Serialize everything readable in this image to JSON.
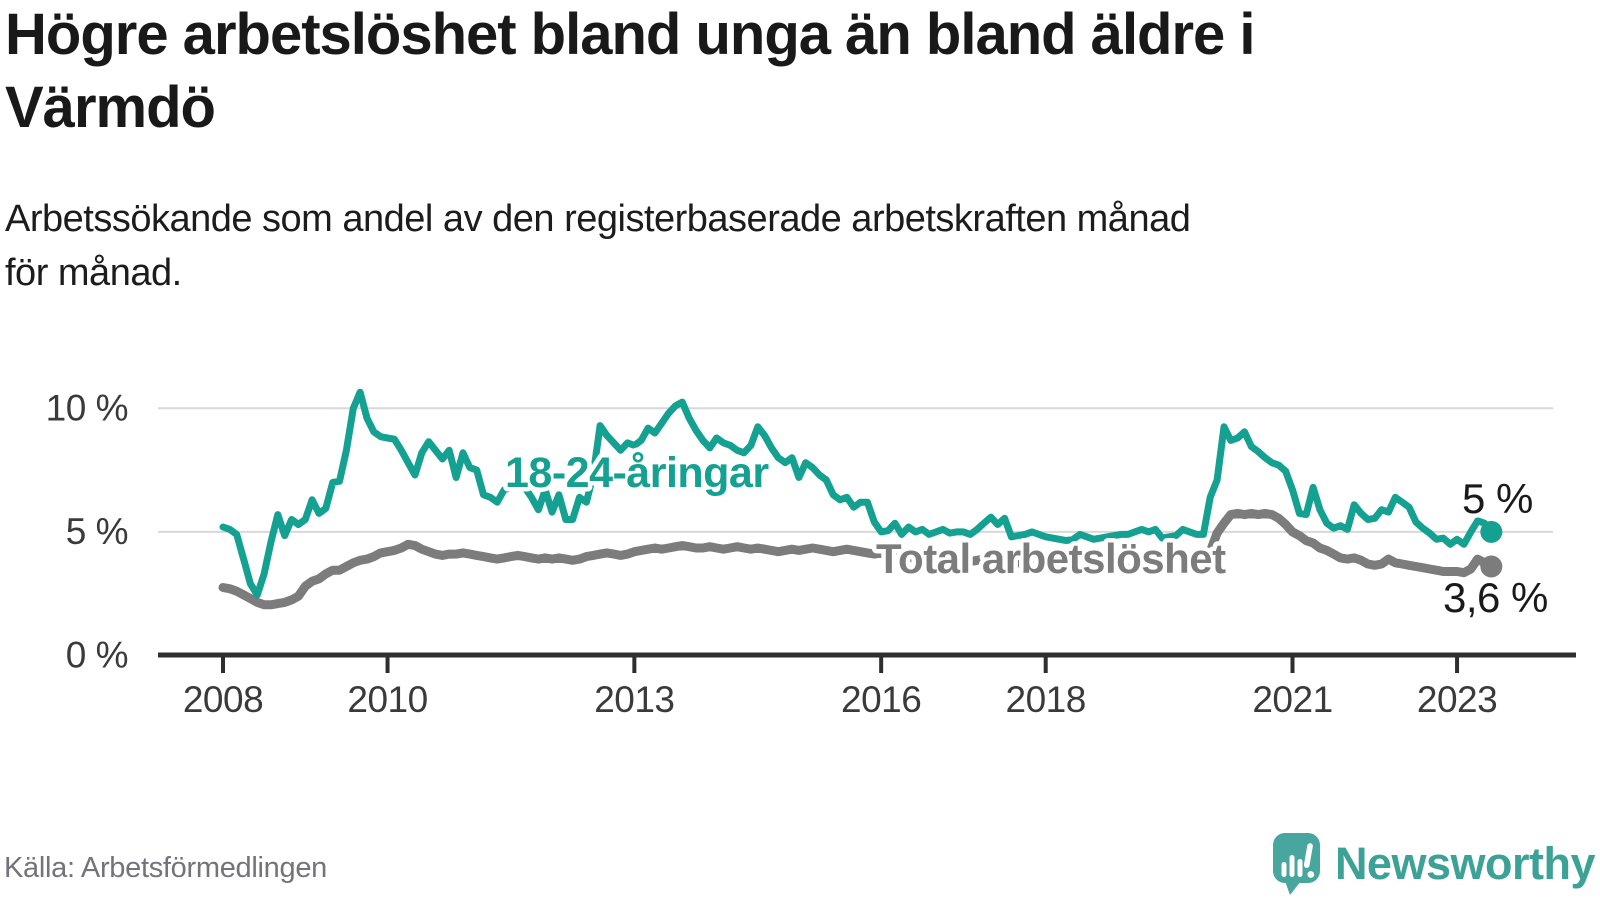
{
  "header": {
    "title_lines": [
      "Högre arbetslöshet bland unga än bland äldre i",
      "Värmdö"
    ],
    "subtitle_lines": [
      "Arbetssökande som andel av den registerbaserade arbetskraften månad",
      "för månad."
    ]
  },
  "footer": {
    "source": "Källa: Arbetsförmedlingen",
    "brand": "Newsworthy",
    "logo_icon": "newsworthy-speech-bubble-bar-chart-icon"
  },
  "colors": {
    "youth_line": "#15a191",
    "total_line": "#7c7c7c",
    "axis_line": "#2e2e2e",
    "gridline": "#d8d8d8",
    "tick_label": "#3a3a3a",
    "end_label": "#1a1a1a",
    "title": "#191919",
    "source_text": "#73737b",
    "brand_teal": "#3ca197",
    "icon_teal": "#47a69e"
  },
  "chart_data": {
    "type": "line",
    "title": "Högre arbetslöshet bland unga än bland äldre i Värmdö",
    "subtitle": "Arbetssökande som andel av den registerbaserade arbetskraften månad för månad.",
    "x_axis": {
      "ticks": [
        2008,
        2010,
        2013,
        2016,
        2018,
        2021,
        2023
      ],
      "labels": [
        "2008",
        "2010",
        "2013",
        "2016",
        "2018",
        "2021",
        "2023"
      ]
    },
    "y_axis": {
      "ticks": [
        0,
        5,
        10
      ],
      "labels": [
        "0 %",
        "5 %",
        "10 %"
      ],
      "range": [
        0,
        11.5
      ],
      "unit": "%"
    },
    "start": "2008-01",
    "frequency": "monthly",
    "grid": "horizontal-only",
    "legend_position": "inline-labels",
    "series": [
      {
        "name": "18-24-åringar",
        "color": "#15a191",
        "end_label": "5 %",
        "end_value": 5.0,
        "values": [
          5.2,
          5.1,
          4.9,
          3.9,
          2.9,
          2.45,
          3.3,
          4.6,
          5.7,
          4.85,
          5.5,
          5.3,
          5.5,
          6.3,
          5.75,
          5.95,
          7.0,
          7.05,
          8.3,
          10.0,
          10.65,
          9.6,
          9.05,
          8.85,
          8.8,
          8.75,
          8.3,
          7.8,
          7.3,
          8.2,
          8.65,
          8.3,
          7.95,
          8.3,
          7.2,
          8.2,
          7.6,
          7.5,
          6.5,
          6.4,
          6.2,
          6.7,
          6.8,
          7.2,
          6.8,
          6.4,
          5.9,
          6.7,
          5.8,
          6.5,
          5.5,
          5.5,
          6.4,
          6.2,
          7.3,
          9.3,
          8.9,
          8.6,
          8.3,
          8.6,
          8.5,
          8.7,
          9.2,
          9.0,
          9.4,
          9.8,
          10.1,
          10.25,
          9.6,
          9.1,
          8.7,
          8.4,
          8.8,
          8.6,
          8.5,
          8.3,
          8.2,
          8.5,
          9.25,
          8.9,
          8.4,
          8.0,
          7.8,
          8.0,
          7.2,
          7.8,
          7.6,
          7.3,
          7.1,
          6.5,
          6.3,
          6.4,
          6.0,
          6.2,
          6.2,
          5.4,
          5.0,
          5.05,
          5.35,
          4.9,
          5.2,
          5.0,
          5.1,
          4.9,
          5.0,
          5.1,
          4.95,
          5.0,
          5.0,
          4.9,
          5.1,
          5.35,
          5.6,
          5.3,
          5.55,
          4.8,
          4.85,
          4.9,
          5.0,
          4.9,
          4.8,
          4.75,
          4.7,
          4.65,
          4.7,
          4.9,
          4.8,
          4.7,
          4.75,
          4.8,
          4.85,
          4.9,
          4.9,
          5.0,
          5.1,
          5.0,
          5.1,
          4.75,
          4.8,
          4.85,
          5.1,
          5.0,
          4.9,
          4.9,
          6.4,
          7.1,
          9.25,
          8.7,
          8.8,
          9.05,
          8.45,
          8.25,
          8.0,
          7.8,
          7.7,
          7.45,
          6.7,
          5.75,
          5.7,
          6.8,
          5.9,
          5.35,
          5.15,
          5.25,
          5.1,
          6.1,
          5.75,
          5.5,
          5.55,
          5.9,
          5.8,
          6.4,
          6.2,
          6.0,
          5.4,
          5.15,
          4.95,
          4.7,
          4.75,
          4.5,
          4.7,
          4.5,
          5.0,
          5.45,
          5.35,
          5.0
        ]
      },
      {
        "name": "Total arbetslöshet",
        "color": "#7c7c7c",
        "end_label": "3,6 %",
        "end_value": 3.6,
        "values": [
          2.75,
          2.7,
          2.6,
          2.45,
          2.3,
          2.15,
          2.05,
          2.05,
          2.1,
          2.15,
          2.25,
          2.4,
          2.8,
          3.0,
          3.1,
          3.3,
          3.45,
          3.45,
          3.6,
          3.75,
          3.85,
          3.9,
          4.0,
          4.15,
          4.2,
          4.25,
          4.35,
          4.5,
          4.45,
          4.3,
          4.2,
          4.1,
          4.05,
          4.1,
          4.1,
          4.15,
          4.1,
          4.05,
          4.0,
          3.95,
          3.9,
          3.95,
          4.0,
          4.05,
          4.0,
          3.95,
          3.9,
          3.95,
          3.9,
          3.95,
          3.9,
          3.85,
          3.9,
          4.0,
          4.05,
          4.1,
          4.15,
          4.1,
          4.05,
          4.1,
          4.2,
          4.25,
          4.3,
          4.35,
          4.3,
          4.35,
          4.4,
          4.45,
          4.4,
          4.35,
          4.35,
          4.4,
          4.35,
          4.3,
          4.35,
          4.4,
          4.35,
          4.3,
          4.35,
          4.3,
          4.25,
          4.2,
          4.25,
          4.3,
          4.25,
          4.3,
          4.35,
          4.3,
          4.25,
          4.2,
          4.25,
          4.3,
          4.25,
          4.2,
          4.15,
          4.1,
          4.15,
          4.1,
          4.05,
          4.0,
          3.95,
          4.0,
          4.05,
          4.0,
          3.95,
          3.9,
          3.85,
          3.9,
          3.85,
          3.8,
          3.85,
          3.9,
          3.95,
          3.9,
          3.85,
          3.8,
          3.75,
          3.7,
          3.75,
          3.7,
          3.65,
          3.6,
          3.55,
          3.6,
          3.65,
          3.6,
          3.55,
          3.5,
          3.55,
          3.6,
          3.55,
          3.5,
          3.5,
          3.55,
          3.6,
          3.55,
          3.5,
          3.45,
          3.5,
          3.55,
          3.6,
          3.65,
          3.6,
          3.7,
          4.2,
          4.95,
          5.35,
          5.7,
          5.75,
          5.7,
          5.75,
          5.7,
          5.75,
          5.7,
          5.55,
          5.3,
          5.0,
          4.85,
          4.65,
          4.55,
          4.35,
          4.25,
          4.1,
          3.95,
          3.9,
          3.95,
          3.85,
          3.7,
          3.65,
          3.7,
          3.9,
          3.75,
          3.7,
          3.65,
          3.6,
          3.55,
          3.5,
          3.45,
          3.4,
          3.4,
          3.4,
          3.35,
          3.5,
          3.9,
          3.75,
          3.6
        ]
      }
    ]
  }
}
